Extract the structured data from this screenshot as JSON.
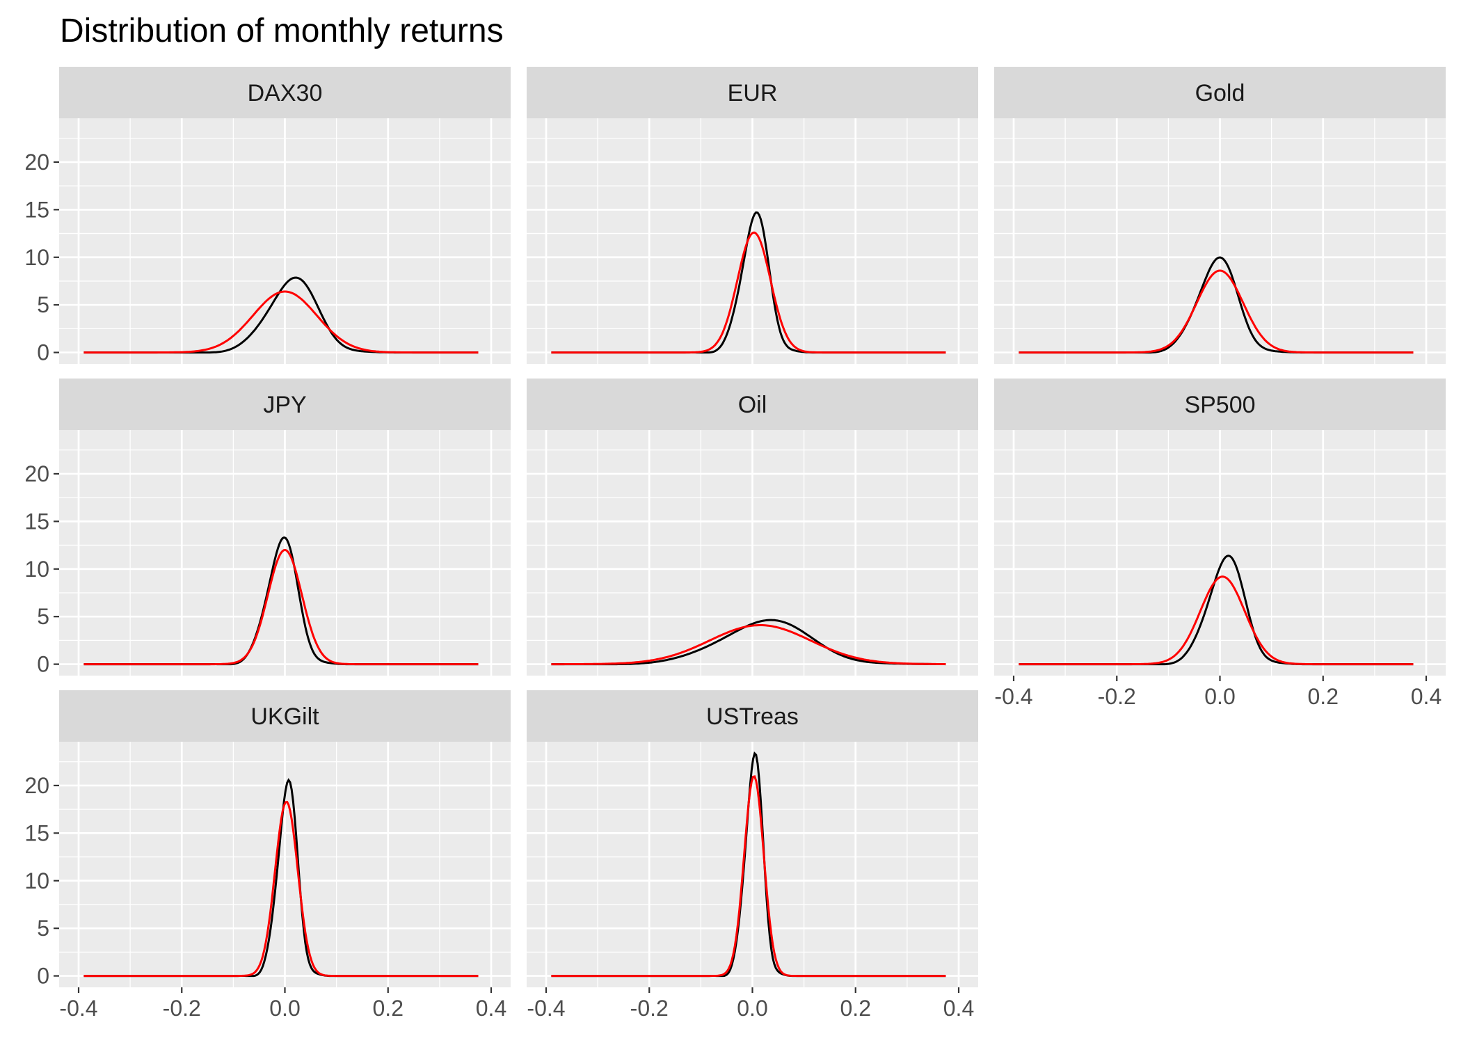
{
  "chart_data": {
    "type": "line",
    "title": "Distribution of monthly returns",
    "xlabel": "",
    "ylabel": "",
    "xlim": [
      -0.4,
      0.4
    ],
    "ylim": [
      0,
      24
    ],
    "x_ticks": [
      "-0.4",
      "-0.2",
      "0.0",
      "0.2",
      "0.4"
    ],
    "x_tick_values": [
      -0.4,
      -0.2,
      0.0,
      0.2,
      0.4
    ],
    "y_ticks": [
      "0",
      "5",
      "10",
      "15",
      "20"
    ],
    "y_tick_values": [
      0,
      5,
      10,
      15,
      20
    ],
    "facets": [
      {
        "label": "DAX30",
        "empirical": {
          "mean": 0.015,
          "sd": 0.047,
          "peak": 7.8
        },
        "normal": {
          "mean": 0.0,
          "sd": 0.062,
          "peak": 6.4
        }
      },
      {
        "label": "EUR",
        "empirical": {
          "mean": 0.005,
          "sd": 0.026,
          "peak": 14.6
        },
        "normal": {
          "mean": 0.003,
          "sd": 0.032,
          "peak": 12.6
        }
      },
      {
        "label": "Gold",
        "empirical": {
          "mean": -0.005,
          "sd": 0.038,
          "peak": 9.9
        },
        "normal": {
          "mean": 0.0,
          "sd": 0.045,
          "peak": 8.6
        }
      },
      {
        "label": "JPY",
        "empirical": {
          "mean": -0.005,
          "sd": 0.029,
          "peak": 13.2
        },
        "normal": {
          "mean": 0.0,
          "sd": 0.033,
          "peak": 12.0
        }
      },
      {
        "label": "Oil",
        "empirical": {
          "mean": 0.025,
          "sd": 0.085,
          "peak": 4.6
        },
        "normal": {
          "mean": 0.015,
          "sd": 0.098,
          "peak": 4.1
        }
      },
      {
        "label": "SP500",
        "empirical": {
          "mean": 0.012,
          "sd": 0.035,
          "peak": 11.3
        },
        "normal": {
          "mean": 0.005,
          "sd": 0.043,
          "peak": 9.2
        }
      },
      {
        "label": "UKGilt",
        "empirical": {
          "mean": 0.005,
          "sd": 0.019,
          "peak": 20.4
        },
        "normal": {
          "mean": 0.003,
          "sd": 0.022,
          "peak": 18.3
        }
      },
      {
        "label": "USTreas",
        "empirical": {
          "mean": 0.003,
          "sd": 0.017,
          "peak": 23.2
        },
        "normal": {
          "mean": 0.003,
          "sd": 0.019,
          "peak": 21.0
        }
      }
    ],
    "x_range": [
      -0.39,
      0.375
    ],
    "series": [
      {
        "name": "",
        "color": "#000000"
      },
      {
        "name": "",
        "color": "#ff0000"
      }
    ],
    "grid": true,
    "panel_background": "#ebebeb",
    "strip_background": "#d9d9d9",
    "legend": "none"
  }
}
